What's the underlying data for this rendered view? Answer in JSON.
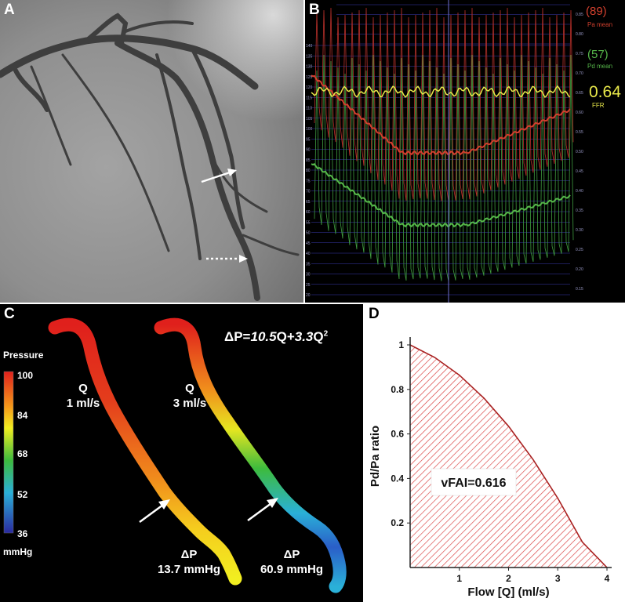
{
  "figure": {
    "panels": [
      "A",
      "B",
      "C",
      "D"
    ]
  },
  "panel_b": {
    "pa_value": "(89)",
    "pa_label": "Pa mean",
    "pd_value": "(57)",
    "pd_label": "Pd mean",
    "ffr_value": "0.64",
    "ffr_label": "FFR",
    "colors": {
      "pa": "#d2402e",
      "pd": "#56b84a",
      "ffr": "#e8e84a",
      "grid": "#3a3ab0"
    },
    "left_ticks": [
      "140",
      "135",
      "130",
      "125",
      "120",
      "115",
      "110",
      "105",
      "100",
      "95",
      "90",
      "85",
      "80",
      "75",
      "70",
      "65",
      "60",
      "55",
      "50",
      "45",
      "40",
      "35",
      "30",
      "25",
      "20"
    ],
    "right_ticks": [
      "0.85",
      "0.80",
      "0.75",
      "0.70",
      "0.65",
      "0.60",
      "0.55",
      "0.50",
      "0.45",
      "0.40",
      "0.35",
      "0.30",
      "0.25",
      "0.20",
      "0.15"
    ]
  },
  "panel_c": {
    "colorbar_title": "Pressure",
    "colorbar_ticks": [
      "100",
      "84",
      "68",
      "52",
      "36"
    ],
    "colorbar_unit": "mmHg",
    "equation": {
      "lhs": "ΔP=",
      "a": "10.5",
      "q1": "Q+",
      "b": "3.3",
      "q2": "Q",
      "exp": "2"
    },
    "vessels": [
      {
        "q_label": "Q",
        "q_value": "1 ml/s",
        "dp_label": "ΔP",
        "dp_value": "13.7 mmHg"
      },
      {
        "q_label": "Q",
        "q_value": "3 ml/s",
        "dp_label": "ΔP",
        "dp_value": "60.9 mmHg"
      }
    ]
  },
  "chart_data": {
    "type": "area",
    "title": "",
    "xlabel": "Flow [Q] (ml/s)",
    "ylabel": "Pd/Pa ratio",
    "xlim": [
      0,
      4
    ],
    "ylim": [
      0,
      1
    ],
    "x_ticks": [
      "1",
      "2",
      "3",
      "4"
    ],
    "y_ticks": [
      "0.2",
      "0.4",
      "0.6",
      "0.8",
      "1"
    ],
    "x": [
      0,
      0.5,
      1,
      1.5,
      2,
      2.5,
      3,
      3.5,
      4
    ],
    "y": [
      1.0,
      0.9437,
      0.864,
      0.7609,
      0.6344,
      0.4845,
      0.3112,
      0.1145,
      0.0
    ],
    "annotation": "vFAI=0.616",
    "fill_color": "#d93a3a"
  }
}
